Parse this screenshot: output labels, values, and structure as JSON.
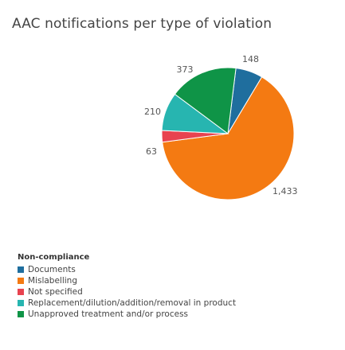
{
  "chart_data": {
    "type": "pie",
    "title": "AAC notifications per type of violation",
    "legend_title": "Non-compliance",
    "legend_position": "bottom-left",
    "slices": [
      {
        "label": "Documents",
        "value": 148,
        "display": "148",
        "color": "#1f6e9e"
      },
      {
        "label": "Mislabelling",
        "value": 1433,
        "display": "1,433",
        "color": "#f47a12"
      },
      {
        "label": "Not specified",
        "value": 63,
        "display": "63",
        "color": "#e8434f"
      },
      {
        "label": "Replacement/dilution/addition/removal in product",
        "value": 210,
        "display": "210",
        "color": "#27b5b0"
      },
      {
        "label": "Unapproved treatment and/or process",
        "value": 373,
        "display": "373",
        "color": "#0f9447"
      }
    ]
  }
}
